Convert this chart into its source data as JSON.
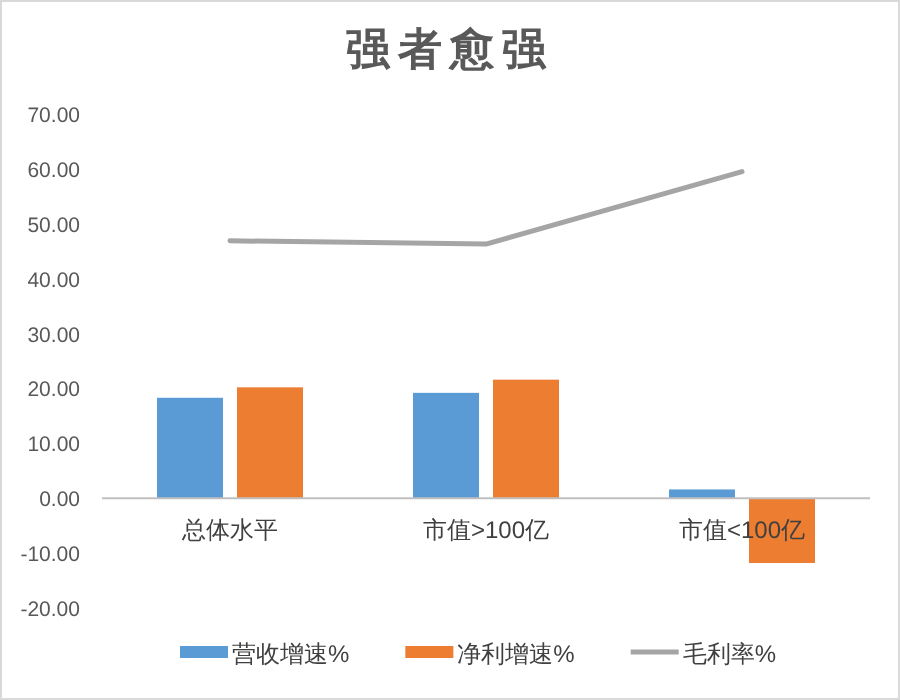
{
  "chart_data": {
    "type": "bar",
    "title": "强者愈强",
    "categories": [
      "总体水平",
      "市值>100亿",
      "市值<100亿"
    ],
    "series": [
      {
        "name": "营收增速%",
        "color": "#5b9bd5",
        "values": [
          18.3,
          19.2,
          1.6
        ]
      },
      {
        "name": "净利增速%",
        "color": "#ed7d31",
        "values": [
          20.2,
          21.6,
          -11.8
        ]
      },
      {
        "name": "毛利率%",
        "type": "line",
        "color": "#a5a5a5",
        "values": [
          46.9,
          46.3,
          59.5
        ]
      }
    ],
    "ylim": [
      -20,
      70
    ],
    "yticks": [
      {
        "value": -20,
        "label": "-20.00"
      },
      {
        "value": -10,
        "label": "-10.00"
      },
      {
        "value": 0,
        "label": "0.00"
      },
      {
        "value": 10,
        "label": "10.00"
      },
      {
        "value": 20,
        "label": "20.00"
      },
      {
        "value": 30,
        "label": "30.00"
      },
      {
        "value": 40,
        "label": "40.00"
      },
      {
        "value": 50,
        "label": "50.00"
      },
      {
        "value": 60,
        "label": "60.00"
      },
      {
        "value": 70,
        "label": "70.00"
      }
    ],
    "grid": false,
    "legend": "bottom"
  }
}
